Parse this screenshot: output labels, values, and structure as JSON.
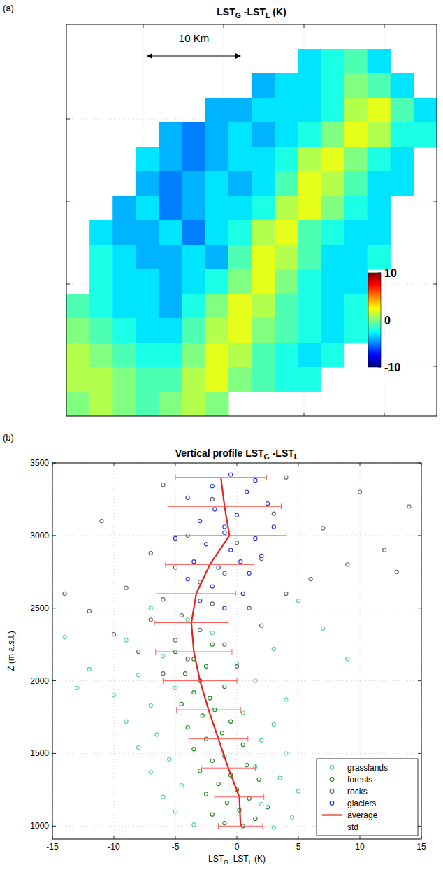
{
  "chart_data": [
    {
      "type": "heatmap",
      "panel": "(a)",
      "title": [
        {
          "text": "LST"
        },
        {
          "text": "G",
          "sub": true
        },
        {
          "text": " -LST"
        },
        {
          "text": "L",
          "sub": true
        },
        {
          "text": " (K)"
        }
      ],
      "scale_bar": "10 Km",
      "colorbar": {
        "range": [
          -10,
          10
        ],
        "ticks": [
          -10,
          0,
          10
        ]
      },
      "grid": true,
      "tick_labels": false,
      "cells": [
        [
          null,
          null,
          null,
          null,
          null,
          null,
          null,
          null,
          null,
          null,
          null,
          null,
          null,
          null,
          null,
          null
        ],
        [
          null,
          null,
          null,
          null,
          null,
          null,
          null,
          null,
          null,
          null,
          -3,
          -2,
          -1,
          -3,
          null,
          null
        ],
        [
          null,
          null,
          null,
          null,
          null,
          null,
          null,
          null,
          -4,
          -3,
          -3,
          -2,
          0,
          -1,
          -3,
          null
        ],
        [
          null,
          null,
          null,
          null,
          null,
          null,
          -4,
          -4,
          -3,
          -3,
          -3,
          -2,
          1,
          2,
          -1,
          -3
        ],
        [
          null,
          null,
          null,
          null,
          -4,
          -5,
          -4,
          -3,
          -4,
          -3,
          -2,
          0,
          2,
          1,
          -2,
          -2
        ],
        [
          null,
          null,
          null,
          -3,
          -4,
          -5,
          -4,
          -3,
          -3,
          -2,
          1,
          2,
          0,
          -2,
          -3,
          null
        ],
        [
          null,
          null,
          null,
          -4,
          -5,
          -4,
          -3,
          -4,
          -3,
          -1,
          2,
          1,
          -1,
          -3,
          -3,
          null
        ],
        [
          null,
          null,
          -4,
          -3,
          -5,
          -4,
          -3,
          -3,
          -2,
          1,
          2,
          0,
          -2,
          -3,
          null,
          null
        ],
        [
          null,
          -3,
          -4,
          -4,
          -3,
          -5,
          -3,
          -2,
          1,
          2,
          -1,
          -2,
          -3,
          -3,
          null,
          null
        ],
        [
          null,
          -2,
          -3,
          -4,
          -4,
          -3,
          -4,
          -1,
          2,
          1,
          -1,
          -3,
          -3,
          -2,
          null,
          null
        ],
        [
          null,
          -2,
          -3,
          -3,
          -4,
          -3,
          -2,
          0,
          2,
          0,
          -2,
          -3,
          -3,
          null,
          null,
          null
        ],
        [
          -1,
          -2,
          -3,
          -3,
          -4,
          -2,
          0,
          2,
          1,
          -1,
          -2,
          -3,
          -2,
          null,
          null,
          null
        ],
        [
          0,
          -1,
          -2,
          -3,
          -3,
          -1,
          1,
          2,
          0,
          -1,
          -2,
          -3,
          -2,
          null,
          null,
          null
        ],
        [
          1,
          0,
          -1,
          -2,
          -2,
          0,
          2,
          1,
          -1,
          -2,
          -3,
          -2,
          null,
          null,
          null,
          null
        ],
        [
          1,
          1,
          0,
          -1,
          -1,
          1,
          2,
          0,
          -1,
          -2,
          -2,
          null,
          null,
          null,
          null,
          null
        ],
        [
          0,
          1,
          0,
          -1,
          0,
          1,
          0,
          null,
          null,
          null,
          null,
          null,
          null,
          null,
          null,
          null
        ]
      ]
    },
    {
      "type": "scatter",
      "panel": "(b)",
      "title": [
        {
          "text": "Vertical profile LST"
        },
        {
          "text": "G",
          "sub": true
        },
        {
          "text": " -LST"
        },
        {
          "text": "L",
          "sub": true
        }
      ],
      "x_label": [
        {
          "text": "LST"
        },
        {
          "text": "G",
          "sub": true
        },
        {
          "text": "–LST"
        },
        {
          "text": "L",
          "sub": true
        },
        {
          "text": " (K)"
        }
      ],
      "y_label": "Z (m a.s.l.)",
      "xlim": [
        -15,
        15
      ],
      "ylim": [
        910,
        3500
      ],
      "xticks": [
        -15,
        -10,
        -5,
        0,
        5,
        10,
        15
      ],
      "yticks": [
        1000,
        1500,
        2000,
        2500,
        3000,
        3500
      ],
      "grid": true,
      "legend": "lower right",
      "series": [
        {
          "name": "grasslands",
          "type": "scatter",
          "marker": "circle",
          "color": "#55d98a",
          "x": [
            3,
            -3.5,
            4.5,
            -5,
            2,
            -6,
            5,
            -4.5,
            3.5,
            -7,
            1.5,
            -5.5,
            4,
            -8,
            2,
            -6.5,
            3,
            -9,
            0.5,
            -7,
            4,
            -10,
            -5,
            1.5,
            -8,
            -12,
            0,
            -6,
            3,
            -9,
            -2,
            7,
            -4,
            -13,
            9,
            -7,
            5,
            -14
          ],
          "values": [
            990,
            1010,
            1060,
            1100,
            1150,
            1200,
            1240,
            1280,
            1330,
            1370,
            1410,
            1460,
            1500,
            1540,
            1590,
            1630,
            1700,
            1720,
            1780,
            1830,
            1870,
            1900,
            1950,
            2000,
            2040,
            2080,
            2120,
            2170,
            2220,
            2280,
            2330,
            2360,
            2420,
            1950,
            2150,
            2500,
            2550,
            2300
          ]
        },
        {
          "name": "forests",
          "type": "scatter",
          "marker": "circle",
          "color": "#1e8a1e",
          "x": [
            0.5,
            -1,
            1.5,
            -2,
            0.2,
            2.5,
            -0.8,
            1,
            -2.5,
            0,
            -1.5,
            1.8,
            -0.5,
            -3,
            0.8,
            -2,
            -1,
            -3.5,
            0.5,
            -2.5,
            -1.2,
            -4,
            -0.5,
            -2.8,
            -1.8,
            -4.5,
            -2.2,
            -3.5,
            -1,
            -3,
            -4.2,
            -2.5,
            -3.5,
            -5,
            -2
          ],
          "values": [
            1000,
            1020,
            1050,
            1080,
            1110,
            1130,
            1160,
            1190,
            1220,
            1250,
            1290,
            1320,
            1350,
            1380,
            1420,
            1450,
            1480,
            1530,
            1560,
            1600,
            1640,
            1680,
            1720,
            1760,
            1800,
            1840,
            1880,
            1920,
            1960,
            2000,
            2050,
            2100,
            2150,
            2200,
            2250
          ]
        },
        {
          "name": "rocks",
          "type": "scatter",
          "marker": "circle",
          "color": "#666666",
          "x": [
            -3,
            -6,
            0,
            -4,
            -8,
            -1,
            -5,
            -10,
            -3,
            2,
            -7,
            -4.5,
            -12,
            1,
            -2,
            -6,
            4,
            -9,
            -3,
            6,
            -1,
            -5,
            9,
            2,
            -7,
            12,
            0,
            -4,
            7,
            -11,
            3,
            14,
            -2,
            10,
            -6,
            4,
            -14,
            13
          ],
          "values": [
            2000,
            2050,
            2100,
            2150,
            2200,
            2250,
            2280,
            2320,
            2350,
            2380,
            2420,
            2450,
            2480,
            2500,
            2530,
            2560,
            2600,
            2640,
            2680,
            2700,
            2740,
            2780,
            2800,
            2840,
            2880,
            2900,
            2950,
            3000,
            3050,
            3100,
            3150,
            3200,
            3250,
            3300,
            3350,
            3400,
            2600,
            2750
          ]
        },
        {
          "name": "glaciers",
          "type": "scatter",
          "marker": "circle",
          "color": "#2436e0",
          "x": [
            -1,
            -3,
            0.5,
            -2,
            -4,
            1,
            -1.5,
            -3.5,
            2,
            -0.5,
            -2.5,
            1.5,
            -1,
            3,
            -3,
            0,
            -1.8,
            2.5,
            -4,
            0.8,
            -2,
            1.5,
            -0.5,
            -1,
            0.3,
            -5
          ],
          "values": [
            2500,
            2550,
            2600,
            2650,
            2700,
            2740,
            2780,
            2820,
            2860,
            2900,
            2940,
            2980,
            3020,
            3060,
            3100,
            3140,
            3180,
            3220,
            3260,
            3300,
            3340,
            3380,
            3420,
            3060,
            2820,
            2980
          ]
        },
        {
          "name": "average",
          "type": "line",
          "line_style": "solid",
          "color": "#e8221a",
          "x": [
            0.3,
            0.2,
            -0.7,
            -1.5,
            -2.3,
            -3.0,
            -3.5,
            -3.7,
            -3.3,
            -2.2,
            -0.6,
            -1.0,
            -1.3
          ],
          "values": [
            1000,
            1200,
            1400,
            1600,
            1800,
            2000,
            2200,
            2400,
            2600,
            2800,
            3000,
            3200,
            3400
          ]
        },
        {
          "name": "std",
          "type": "errorbar",
          "line_style": "solid",
          "color": "#ff5a5a",
          "x": [
            0.3,
            0.2,
            -0.7,
            -1.5,
            -2.3,
            -3.0,
            -3.5,
            -3.7,
            -3.3,
            -2.2,
            -0.6,
            -1.0,
            -1.3
          ],
          "values": [
            1000,
            1200,
            1400,
            1600,
            1800,
            2000,
            2200,
            2400,
            2600,
            2800,
            3000,
            3200,
            3400
          ],
          "error": [
            1.8,
            2.0,
            2.2,
            2.4,
            2.6,
            3.0,
            3.1,
            3.0,
            3.2,
            3.6,
            4.6,
            4.6,
            3.7
          ]
        }
      ]
    }
  ]
}
